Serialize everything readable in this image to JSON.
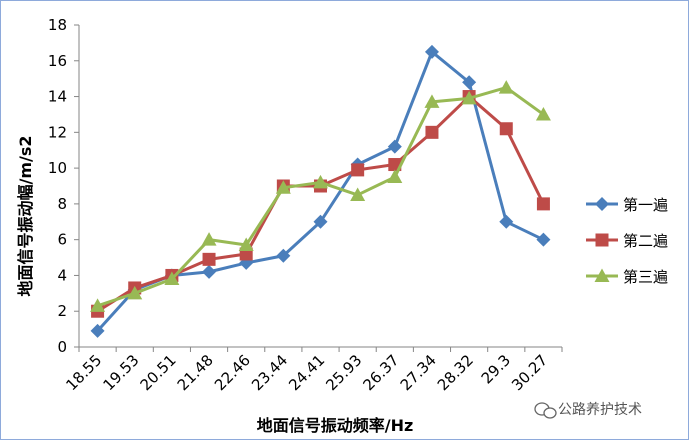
{
  "chart_data": {
    "type": "line",
    "categories": [
      "18.55",
      "19.53",
      "20.51",
      "21.48",
      "22.46",
      "23.44",
      "24.41",
      "25.93",
      "26.37",
      "27.34",
      "28.32",
      "29.3",
      "30.27"
    ],
    "series": [
      {
        "name": "第一遍",
        "color": "#4a7ebb",
        "marker": "diamond",
        "values": [
          0.9,
          3.2,
          4.0,
          4.2,
          4.7,
          5.1,
          7.0,
          10.2,
          11.2,
          16.5,
          14.8,
          7.0,
          6.0
        ]
      },
      {
        "name": "第二遍",
        "color": "#be4b48",
        "marker": "square",
        "values": [
          2.0,
          3.3,
          4.0,
          4.9,
          5.2,
          9.0,
          9.0,
          9.9,
          10.2,
          12.0,
          14.0,
          12.2,
          8.0
        ]
      },
      {
        "name": "第三遍",
        "color": "#98b954",
        "marker": "triangle",
        "values": [
          2.3,
          3.0,
          3.8,
          6.0,
          5.7,
          8.9,
          9.2,
          8.5,
          9.5,
          13.7,
          13.9,
          14.5,
          13.0
        ]
      }
    ],
    "yticks": [
      "0",
      "2",
      "4",
      "6",
      "8",
      "10",
      "12",
      "14",
      "16",
      "18"
    ],
    "ylim": [
      0,
      18
    ],
    "xlabel": "地面信号振动频率/Hz",
    "ylabel": "地面信号振动幅/m/s2",
    "grid": false,
    "legend_position": "right"
  },
  "watermark": {
    "text": "公路养护技术"
  }
}
